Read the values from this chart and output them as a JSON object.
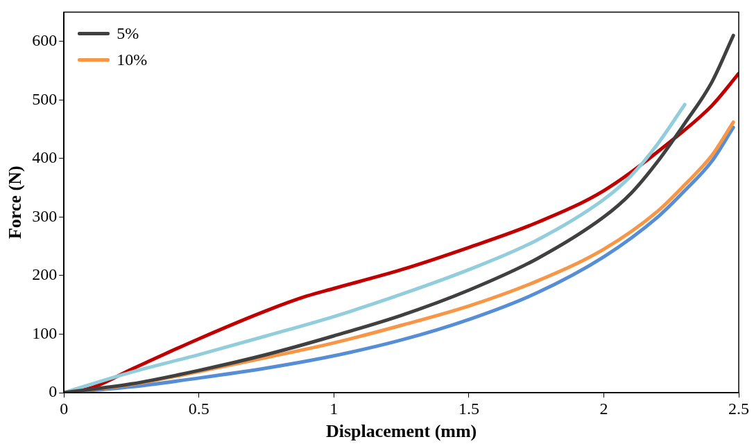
{
  "chart_data": {
    "type": "line",
    "xlabel": "Displacement (mm)",
    "ylabel": "Force (N)",
    "xlim": [
      0,
      2.5
    ],
    "xticks": [
      0,
      0.5,
      1,
      1.5,
      2,
      2.5
    ],
    "ylim": [
      0,
      650
    ],
    "yticks": [
      0,
      100,
      200,
      300,
      400,
      500,
      600
    ],
    "grid": false,
    "legend": "top left",
    "marker": "none",
    "line_style": "solid",
    "series": [
      {
        "name": "5%",
        "color": "#404040",
        "x": [
          0,
          0.25,
          0.5,
          0.75,
          1,
          1.25,
          1.5,
          1.75,
          2,
          2.1,
          2.2,
          2.3,
          2.4,
          2.48
        ],
        "values": [
          0,
          15,
          38,
          65,
          97,
          132,
          175,
          228,
          300,
          340,
          395,
          460,
          530,
          610
        ]
      },
      {
        "name": "10%",
        "color": "#f79646",
        "x": [
          0,
          0.25,
          0.5,
          0.75,
          1,
          1.25,
          1.5,
          1.75,
          2,
          2.2,
          2.3,
          2.4,
          2.48
        ],
        "values": [
          0,
          14,
          36,
          60,
          85,
          115,
          148,
          190,
          245,
          310,
          355,
          405,
          462
        ]
      },
      {
        "color": "#92cddc",
        "x": [
          0,
          0.25,
          0.5,
          0.75,
          1,
          1.25,
          1.5,
          1.75,
          2,
          2.1,
          2.2,
          2.3
        ],
        "values": [
          0,
          35,
          65,
          97,
          130,
          168,
          210,
          260,
          330,
          370,
          425,
          492
        ]
      },
      {
        "color": "#558ed5",
        "x": [
          0,
          0.25,
          0.5,
          0.75,
          1,
          1.25,
          1.5,
          1.75,
          2,
          2.2,
          2.3,
          2.4,
          2.48
        ],
        "values": [
          0,
          10,
          25,
          42,
          63,
          90,
          125,
          170,
          232,
          300,
          345,
          395,
          453
        ]
      },
      {
        "color": "#c00000",
        "x": [
          0,
          0.1,
          0.25,
          0.5,
          0.75,
          0.9,
          1,
          1.25,
          1.5,
          1.75,
          2,
          2.25,
          2.4,
          2.5
        ],
        "values": [
          0,
          8,
          40,
          92,
          140,
          165,
          178,
          210,
          248,
          290,
          345,
          430,
          490,
          545
        ]
      }
    ]
  }
}
